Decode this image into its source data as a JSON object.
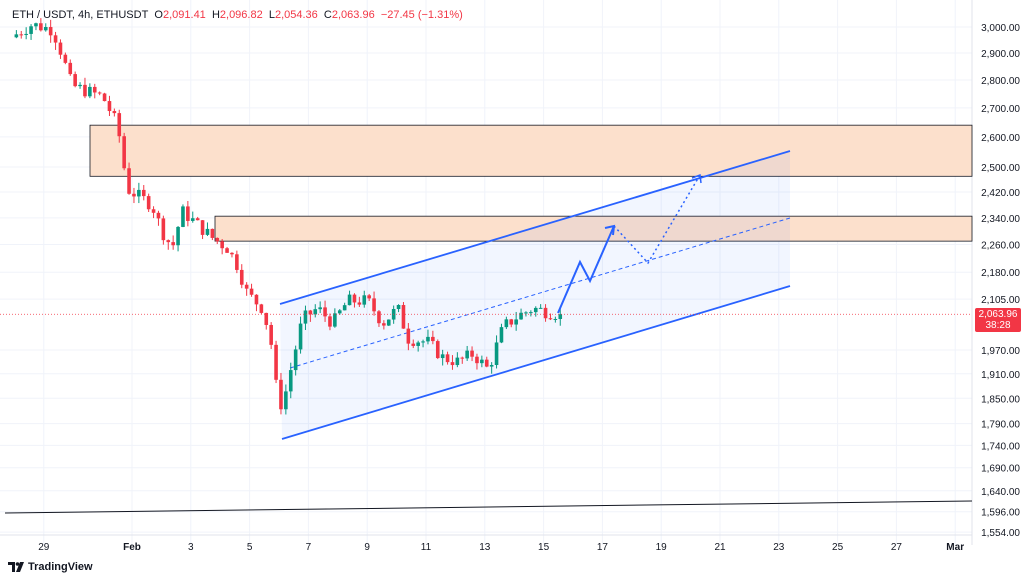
{
  "header": {
    "symbol": "ETH / USDT, 4h, ETHUSDT",
    "o_label": "O",
    "open": "2,091.41",
    "h_label": "H",
    "high": "2,096.82",
    "l_label": "L",
    "low": "2,054.36",
    "c_label": "C",
    "close": "2,063.96",
    "change": "−27.45 (−1.31%)"
  },
  "price_tag": {
    "price": "2,063.96",
    "countdown": "38:28"
  },
  "branding": {
    "logo_text": "TradingView"
  },
  "colors": {
    "up": "#089981",
    "down": "#f23645",
    "channel": "#2962ff",
    "zone_fill": "#fce0cc",
    "grid": "#f0f3fa"
  },
  "chart_data": {
    "type": "candlestick",
    "timeframe": "4h",
    "y_scale": "log",
    "ylim": [
      1540,
      3060
    ],
    "yticks": [
      3000,
      2900,
      2800,
      2700,
      2600,
      2500,
      2420,
      2340,
      2260,
      2180,
      2105,
      1970,
      1910,
      1850,
      1790,
      1740,
      1690,
      1640,
      1596,
      1554
    ],
    "ytick_labels": [
      "3,000.00",
      "2,900.00",
      "2,800.00",
      "2,700.00",
      "2,600.00",
      "2,500.00",
      "2,420.00",
      "2,340.00",
      "2,260.00",
      "2,180.00",
      "2,105.00",
      "1,970.00",
      "1,910.00",
      "1,850.00",
      "1,790.00",
      "1,740.00",
      "1,690.00",
      "1,640.00",
      "1,596.00",
      "1,554.00"
    ],
    "xticks_days_from_feb1": [
      -3,
      0,
      2,
      4,
      6,
      8,
      10,
      12,
      14,
      16,
      18,
      20,
      22,
      24,
      26,
      28
    ],
    "xtick_labels": [
      "29",
      "Feb",
      "3",
      "5",
      "7",
      "9",
      "11",
      "13",
      "15",
      "17",
      "19",
      "21",
      "23",
      "25",
      "27",
      "Mar"
    ],
    "price_path": [
      [
        -4.1,
        2960
      ],
      [
        -3.4,
        3010
      ],
      [
        -2.7,
        2990
      ],
      [
        -2.4,
        2900
      ],
      [
        -2.05,
        2780
      ],
      [
        -1.55,
        2760
      ],
      [
        -1.0,
        2740
      ],
      [
        -0.5,
        2640
      ],
      [
        -0.34,
        2550
      ],
      [
        -0.17,
        2430
      ],
      [
        0.17,
        2410
      ],
      [
        0.68,
        2380
      ],
      [
        1.02,
        2300
      ],
      [
        1.37,
        2250
      ],
      [
        1.71,
        2360
      ],
      [
        2.22,
        2320
      ],
      [
        2.73,
        2280
      ],
      [
        3.24,
        2250
      ],
      [
        3.58,
        2200
      ],
      [
        3.92,
        2120
      ],
      [
        4.44,
        2080
      ],
      [
        4.71,
        2000
      ],
      [
        4.95,
        1850
      ],
      [
        5.12,
        1830
      ],
      [
        5.46,
        1940
      ],
      [
        5.8,
        2050
      ],
      [
        6.31,
        2080
      ],
      [
        6.83,
        2040
      ],
      [
        7.34,
        2100
      ],
      [
        8.02,
        2100
      ],
      [
        8.53,
        2040
      ],
      [
        9.04,
        2080
      ],
      [
        9.39,
        2000
      ],
      [
        10.07,
        1990
      ],
      [
        10.58,
        1950
      ],
      [
        11.09,
        1940
      ],
      [
        11.6,
        1960
      ],
      [
        12.12,
        1920
      ],
      [
        12.63,
        2030
      ],
      [
        13.14,
        2060
      ],
      [
        13.65,
        2080
      ],
      [
        14.16,
        2070
      ],
      [
        14.57,
        2064
      ]
    ],
    "last_price": 2063.96,
    "zones": [
      {
        "name": "supply-zone-upper",
        "from": 2470,
        "to": 2640
      },
      {
        "name": "supply-zone-lower",
        "from": 2270,
        "to": 2345
      }
    ]
  }
}
